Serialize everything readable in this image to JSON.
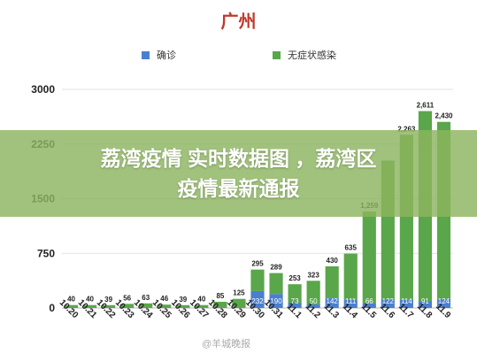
{
  "banner": {
    "text": "荔湾疫情 实时数据图 ，荔湾区疫情最新通报"
  },
  "watermark": {
    "text": "@羊城晚报"
  },
  "colors": {
    "confirmed": "#4a7fcf",
    "asymptomatic": "#5aa64a",
    "title": "#c0392b"
  },
  "chart_data": {
    "type": "bar",
    "stacked": true,
    "title": "广州",
    "categories": [
      "10.20",
      "10.21",
      "10.22",
      "10.23",
      "10.24",
      "10.25",
      "10.26",
      "10.27",
      "10.28",
      "10.29",
      "10.30",
      "10.31",
      "11.1",
      "11.2",
      "11.3",
      "11.4",
      "11.5",
      "11.6",
      "11.7",
      "11.8",
      "11.9"
    ],
    "series": [
      {
        "name": "确诊",
        "values": [
          0,
          0,
          0,
          0,
          0,
          0,
          0,
          0,
          0,
          0,
          232,
          190,
          73,
          50,
          142,
          111,
          66,
          122,
          114,
          91,
          124
        ],
        "labels": [
          "",
          "",
          "",
          "",
          "",
          "",
          "",
          "",
          "",
          "",
          "232",
          "190",
          "73",
          "50",
          "142",
          "111",
          "66",
          "122",
          "114",
          "91",
          "124"
        ]
      },
      {
        "name": "无症状感染",
        "values": [
          40,
          40,
          39,
          56,
          63,
          46,
          39,
          40,
          85,
          125,
          295,
          289,
          253,
          323,
          430,
          635,
          1259,
          1900,
          2263,
          2611,
          2430
        ],
        "labels": [
          "40",
          "40",
          "39",
          "56",
          "63",
          "46",
          "39",
          "40",
          "85",
          "125",
          "295",
          "289",
          "253",
          "323",
          "430",
          "635",
          "1,259",
          "",
          "2,263",
          "2,611",
          "2,430"
        ]
      }
    ],
    "ylim": [
      0,
      3000
    ],
    "yticks": [
      "0",
      "750",
      "1500",
      "2250",
      "3000"
    ],
    "grid": true,
    "legend": "top"
  }
}
